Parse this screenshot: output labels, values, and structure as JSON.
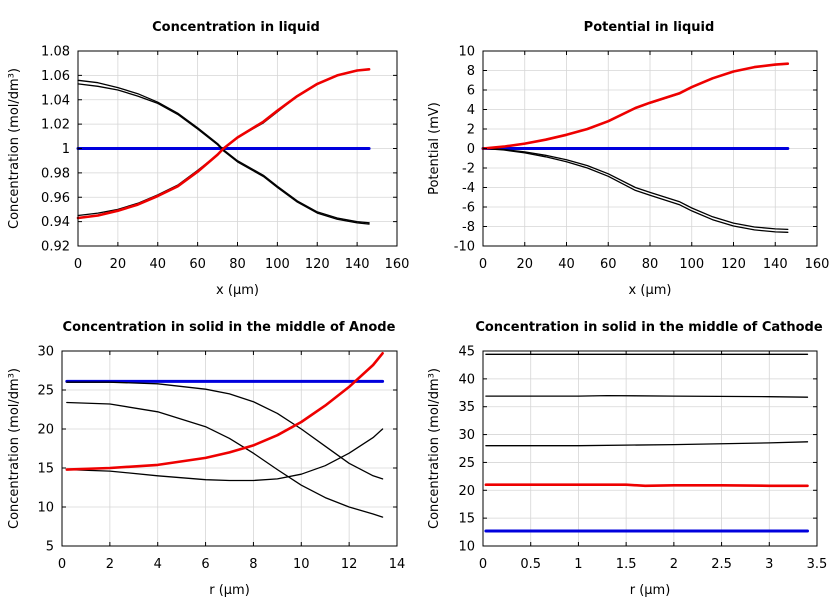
{
  "chart_data": [
    {
      "type": "line",
      "title": "Concentration in liquid",
      "xlabel": "x (µm)",
      "ylabel": "Concentration (mol/dm³)",
      "xlim": [
        0,
        160
      ],
      "ylim": [
        0.92,
        1.08
      ],
      "xticks": [
        0,
        20,
        40,
        60,
        80,
        100,
        120,
        140,
        160
      ],
      "yticks": [
        0.92,
        0.94,
        0.96,
        0.98,
        1,
        1.02,
        1.04,
        1.06,
        1.08
      ],
      "xtick_labels": [
        "0",
        "20",
        "40",
        "60",
        "80",
        "100",
        "120",
        "140",
        "160"
      ],
      "ytick_labels": [
        "0.92",
        "0.94",
        "0.96",
        "0.98",
        "1",
        "1.02",
        "1.04",
        "1.06",
        "1.08"
      ],
      "grid": true,
      "series": [
        {
          "color": "#0000dd",
          "width": 3,
          "x": [
            0,
            146
          ],
          "y": [
            1.0,
            1.0
          ]
        },
        {
          "color": "#000000",
          "width": 1.3,
          "x": [
            0,
            10,
            20,
            30,
            40,
            50,
            60,
            70,
            73,
            80,
            93,
            100,
            110,
            120,
            130,
            140,
            146
          ],
          "y": [
            1.056,
            1.054,
            1.05,
            1.045,
            1.038,
            1.029,
            1.017,
            1.004,
            0.999,
            0.99,
            0.978,
            0.969,
            0.957,
            0.948,
            0.943,
            0.94,
            0.939
          ]
        },
        {
          "color": "#000000",
          "width": 1.3,
          "x": [
            0,
            10,
            20,
            30,
            40,
            50,
            60,
            70,
            73,
            80,
            93,
            100,
            110,
            120,
            130,
            140,
            146
          ],
          "y": [
            1.053,
            1.051,
            1.048,
            1.043,
            1.037,
            1.028,
            1.016,
            1.003,
            0.998,
            0.989,
            0.977,
            0.968,
            0.956,
            0.947,
            0.942,
            0.939,
            0.938
          ]
        },
        {
          "color": "#000000",
          "width": 1.3,
          "x": [
            0,
            10,
            20,
            30,
            40,
            50,
            60,
            70,
            73,
            80,
            93,
            100,
            110,
            120,
            130,
            140,
            146
          ],
          "y": [
            0.945,
            0.947,
            0.95,
            0.955,
            0.962,
            0.97,
            0.982,
            0.995,
            1.0,
            1.009,
            1.021,
            1.03,
            1.043,
            1.053,
            1.06,
            1.064,
            1.065
          ]
        },
        {
          "color": "#ee0000",
          "width": 2.6,
          "x": [
            0,
            10,
            20,
            30,
            40,
            50,
            60,
            70,
            73,
            80,
            93,
            100,
            110,
            120,
            130,
            140,
            146
          ],
          "y": [
            0.943,
            0.945,
            0.949,
            0.954,
            0.961,
            0.969,
            0.981,
            0.995,
            1.0,
            1.009,
            1.022,
            1.031,
            1.043,
            1.053,
            1.06,
            1.064,
            1.065
          ]
        }
      ]
    },
    {
      "type": "line",
      "title": "Potential in liquid",
      "xlabel": "x (µm)",
      "ylabel": "Potential (mV)",
      "xlim": [
        0,
        160
      ],
      "ylim": [
        -10,
        10
      ],
      "xticks": [
        0,
        20,
        40,
        60,
        80,
        100,
        120,
        140,
        160
      ],
      "yticks": [
        -10,
        -8,
        -6,
        -4,
        -2,
        0,
        2,
        4,
        6,
        8,
        10
      ],
      "xtick_labels": [
        "0",
        "20",
        "40",
        "60",
        "80",
        "100",
        "120",
        "140",
        "160"
      ],
      "ytick_labels": [
        "-10",
        "-8",
        "-6",
        "-4",
        "-2",
        "0",
        "2",
        "4",
        "6",
        "8",
        "10"
      ],
      "grid": true,
      "series": [
        {
          "color": "#0000dd",
          "width": 3,
          "x": [
            0,
            146
          ],
          "y": [
            0,
            0
          ]
        },
        {
          "color": "#000000",
          "width": 1.3,
          "x": [
            0,
            10,
            20,
            30,
            40,
            50,
            60,
            73,
            80,
            94,
            100,
            110,
            120,
            130,
            140,
            146
          ],
          "y": [
            0,
            -0.1,
            -0.35,
            -0.7,
            -1.15,
            -1.75,
            -2.6,
            -4.0,
            -4.5,
            -5.45,
            -6.1,
            -7.0,
            -7.65,
            -8.05,
            -8.25,
            -8.3
          ]
        },
        {
          "color": "#000000",
          "width": 1.3,
          "x": [
            0,
            10,
            20,
            30,
            40,
            50,
            60,
            73,
            80,
            94,
            100,
            110,
            120,
            130,
            140,
            146
          ],
          "y": [
            0,
            -0.15,
            -0.45,
            -0.85,
            -1.35,
            -2.0,
            -2.85,
            -4.3,
            -4.8,
            -5.75,
            -6.4,
            -7.3,
            -7.95,
            -8.35,
            -8.55,
            -8.6
          ]
        },
        {
          "color": "#000000",
          "width": 1.3,
          "x": [
            0,
            10,
            20,
            30,
            40,
            50,
            60,
            73,
            80,
            94,
            100,
            110,
            120,
            130,
            140,
            146
          ],
          "y": [
            0,
            0.2,
            0.5,
            0.9,
            1.4,
            2.0,
            2.8,
            4.1,
            4.65,
            5.6,
            6.3,
            7.2,
            7.9,
            8.35,
            8.6,
            8.65
          ]
        },
        {
          "color": "#ee0000",
          "width": 2.6,
          "x": [
            0,
            10,
            20,
            30,
            40,
            50,
            60,
            73,
            80,
            94,
            100,
            110,
            120,
            130,
            140,
            146
          ],
          "y": [
            0,
            0.2,
            0.5,
            0.9,
            1.4,
            2.0,
            2.8,
            4.15,
            4.7,
            5.65,
            6.3,
            7.2,
            7.9,
            8.35,
            8.6,
            8.7
          ]
        }
      ]
    },
    {
      "type": "line",
      "title": "Concentration in solid in the middle of Anode",
      "xlabel": "r (µm)",
      "ylabel": "Concentration (mol/dm³)",
      "xlim": [
        0,
        14
      ],
      "ylim": [
        5,
        30
      ],
      "xticks": [
        0,
        2,
        4,
        6,
        8,
        10,
        12,
        14
      ],
      "yticks": [
        5,
        10,
        15,
        20,
        25,
        30
      ],
      "xtick_labels": [
        "0",
        "2",
        "4",
        "6",
        "8",
        "10",
        "12",
        "14"
      ],
      "ytick_labels": [
        "5",
        "10",
        "15",
        "20",
        "25",
        "30"
      ],
      "grid": true,
      "series": [
        {
          "color": "#0000dd",
          "width": 3,
          "x": [
            0.2,
            13.4
          ],
          "y": [
            26.1,
            26.1
          ]
        },
        {
          "color": "#000000",
          "width": 1.3,
          "x": [
            0.2,
            2,
            4,
            6,
            7,
            8,
            9,
            10,
            11,
            12,
            13,
            13.4
          ],
          "y": [
            14.8,
            14.6,
            14.0,
            13.5,
            13.4,
            13.4,
            13.6,
            14.2,
            15.3,
            16.9,
            18.9,
            20.0
          ]
        },
        {
          "color": "#000000",
          "width": 1.3,
          "x": [
            0.2,
            2,
            4,
            6,
            7,
            8,
            9,
            10,
            11,
            12,
            13,
            13.4
          ],
          "y": [
            23.4,
            23.2,
            22.2,
            20.3,
            18.8,
            16.9,
            14.8,
            12.8,
            11.2,
            10.0,
            9.1,
            8.7
          ]
        },
        {
          "color": "#000000",
          "width": 1.3,
          "x": [
            0.2,
            2,
            4,
            6,
            7,
            8,
            9,
            10,
            11,
            12,
            13,
            13.4
          ],
          "y": [
            26.0,
            26.0,
            25.8,
            25.1,
            24.5,
            23.5,
            22.0,
            20.0,
            17.8,
            15.6,
            14.0,
            13.6
          ]
        },
        {
          "color": "#ee0000",
          "width": 2.6,
          "x": [
            0.2,
            2,
            4,
            6,
            7,
            8,
            9,
            10,
            11,
            12,
            13,
            13.4
          ],
          "y": [
            14.8,
            15.0,
            15.4,
            16.3,
            17.0,
            17.9,
            19.2,
            20.9,
            23.0,
            25.4,
            28.2,
            29.7
          ]
        }
      ]
    },
    {
      "type": "line",
      "title": "Concentration in solid in the middle of Cathode",
      "xlabel": "r (µm)",
      "ylabel": "Concentration (mol/dm³)",
      "xlim": [
        0,
        3.5
      ],
      "ylim": [
        10,
        45
      ],
      "xticks": [
        0,
        0.5,
        1,
        1.5,
        2,
        2.5,
        3,
        3.5
      ],
      "yticks": [
        10,
        15,
        20,
        25,
        30,
        35,
        40,
        45
      ],
      "xtick_labels": [
        "0",
        "0.5",
        "1",
        "1.5",
        "2",
        "2.5",
        "3",
        "3.5"
      ],
      "ytick_labels": [
        "10",
        "15",
        "20",
        "25",
        "30",
        "35",
        "40",
        "45"
      ],
      "grid": true,
      "series": [
        {
          "color": "#0000dd",
          "width": 3,
          "x": [
            0.03,
            3.4
          ],
          "y": [
            12.7,
            12.7
          ]
        },
        {
          "color": "#000000",
          "width": 1.3,
          "x": [
            0.03,
            1.0,
            2.0,
            3.0,
            3.4
          ],
          "y": [
            44.4,
            44.4,
            44.4,
            44.4,
            44.4
          ]
        },
        {
          "color": "#000000",
          "width": 1.3,
          "x": [
            0.03,
            1.0,
            1.3,
            2.0,
            3.0,
            3.4
          ],
          "y": [
            36.9,
            36.9,
            37.0,
            36.9,
            36.8,
            36.7
          ]
        },
        {
          "color": "#000000",
          "width": 1.3,
          "x": [
            0.03,
            1.0,
            2.0,
            3.0,
            3.4
          ],
          "y": [
            28.0,
            28.0,
            28.2,
            28.5,
            28.7
          ]
        },
        {
          "color": "#ee0000",
          "width": 2.6,
          "x": [
            0.03,
            1.0,
            1.5,
            1.7,
            2.0,
            2.5,
            3.0,
            3.4
          ],
          "y": [
            21.0,
            21.0,
            21.0,
            20.8,
            20.9,
            20.9,
            20.8,
            20.8
          ]
        }
      ]
    }
  ]
}
